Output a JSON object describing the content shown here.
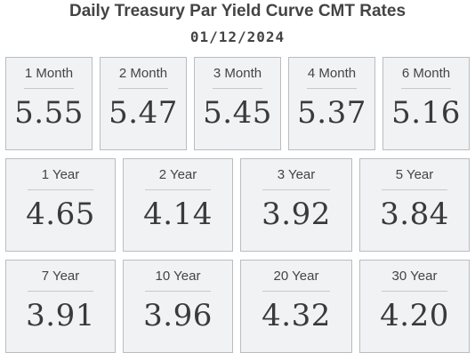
{
  "header": {
    "title": "Daily Treasury Par Yield Curve CMT Rates",
    "date": "01/12/2024"
  },
  "rates": [
    {
      "label": "1 Month",
      "value": "5.55"
    },
    {
      "label": "2 Month",
      "value": "5.47"
    },
    {
      "label": "3 Month",
      "value": "5.45"
    },
    {
      "label": "4 Month",
      "value": "5.37"
    },
    {
      "label": "6 Month",
      "value": "5.16"
    },
    {
      "label": "1 Year",
      "value": "4.65"
    },
    {
      "label": "2 Year",
      "value": "4.14"
    },
    {
      "label": "3 Year",
      "value": "3.92"
    },
    {
      "label": "5 Year",
      "value": "3.84"
    },
    {
      "label": "7 Year",
      "value": "3.91"
    },
    {
      "label": "10 Year",
      "value": "3.96"
    },
    {
      "label": "20 Year",
      "value": "4.32"
    },
    {
      "label": "30 Year",
      "value": "4.20"
    }
  ]
}
